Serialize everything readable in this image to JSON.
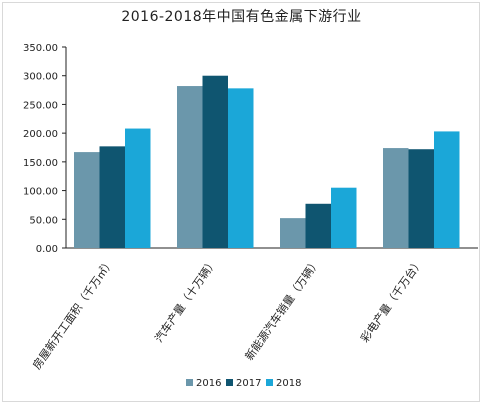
{
  "chart_data": {
    "type": "bar",
    "title": "2016-2018年中国有色金属下游行业",
    "categories": [
      "房屋新开工面积（千万㎡）",
      "汽车产量（十万辆）",
      "新能源汽车销量（万辆）",
      "彩电产量（千万台）"
    ],
    "series": [
      {
        "name": "2016",
        "color": "#6b97ab",
        "values": [
          167,
          282,
          52,
          174
        ]
      },
      {
        "name": "2017",
        "color": "#0f5570",
        "values": [
          177,
          300,
          77,
          172
        ]
      },
      {
        "name": "2018",
        "color": "#1ba7d8",
        "values": [
          208,
          278,
          105,
          203
        ]
      }
    ],
    "ylim": [
      0,
      350
    ],
    "yticks": [
      "0.00",
      "50.00",
      "100.00",
      "150.00",
      "200.00",
      "250.00",
      "300.00",
      "350.00"
    ],
    "ytick_values": [
      0,
      50,
      100,
      150,
      200,
      250,
      300,
      350
    ],
    "grid": false,
    "legend_position": "bottom"
  }
}
